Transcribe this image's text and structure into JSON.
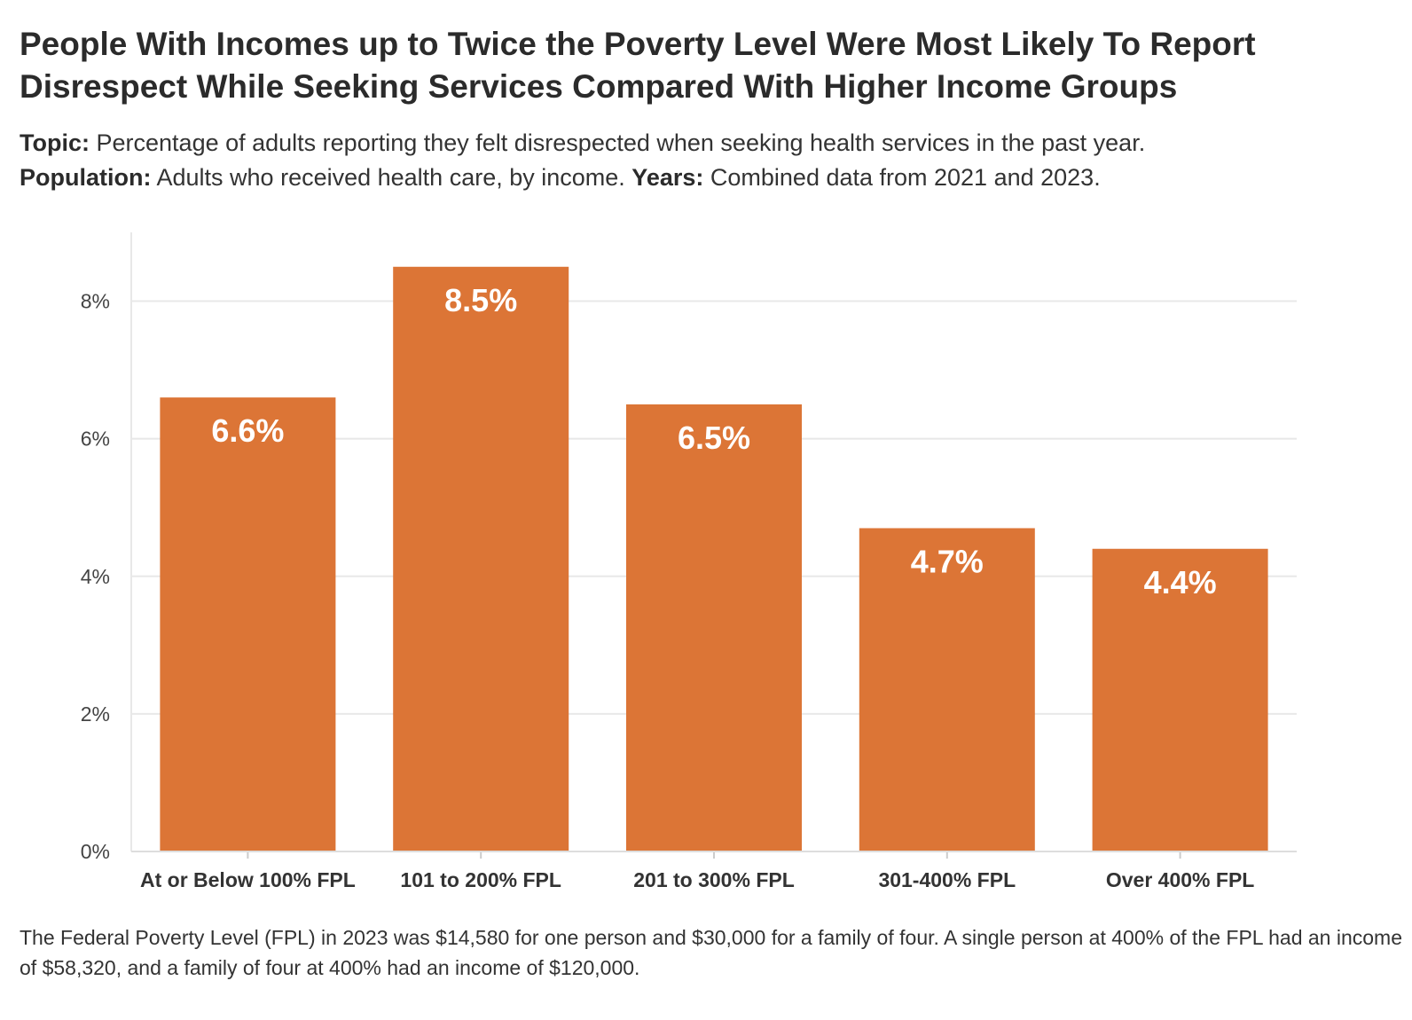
{
  "title": "People With Incomes up to Twice the Poverty Level Were Most Likely To Report Disrespect While Seeking Services Compared With Higher Income Groups",
  "subtitle": {
    "topic_label": "Topic:",
    "topic_text": "Percentage of adults reporting they felt disrespected when seeking health services in the past year.",
    "population_label": "Population:",
    "population_text": "Adults who received health care, by income.",
    "years_label": "Years:",
    "years_text": "Combined data from 2021 and 2023."
  },
  "footnote": "The Federal Poverty Level (FPL) in 2023 was $14,580 for one person and $30,000 for a family of four. A single person at 400% of the FPL had an income of $58,320, and a family of four at 400% had an income of $120,000.",
  "colors": {
    "bar": "#dc7536",
    "bar_label": "#ffffff",
    "grid": "#e8e8e8",
    "axis_text": "#444444"
  },
  "chart_data": {
    "type": "bar",
    "categories": [
      "At or Below 100% FPL",
      "101 to 200% FPL",
      "201 to 300% FPL",
      "301-400% FPL",
      "Over 400% FPL"
    ],
    "values": [
      6.6,
      8.5,
      6.5,
      4.7,
      4.4
    ],
    "data_labels": [
      "6.6%",
      "8.5%",
      "6.5%",
      "4.7%",
      "4.4%"
    ],
    "ylim": [
      0,
      9
    ],
    "yticks": [
      0,
      2,
      4,
      6,
      8
    ],
    "ytick_labels": [
      "0%",
      "2%",
      "4%",
      "6%",
      "8%"
    ],
    "grid": true,
    "legend": "none"
  }
}
